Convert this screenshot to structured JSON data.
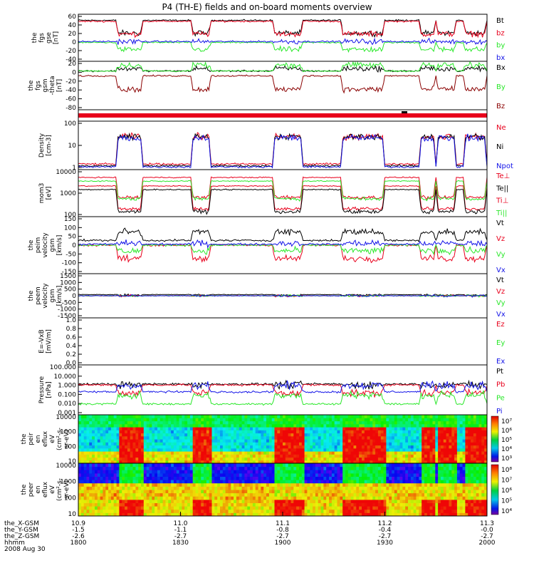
{
  "title": "P4 (TH-E) fields and on-board moments overview",
  "colors": {
    "black": "#000000",
    "red": "#e8001c",
    "green": "#2ae82a",
    "blue": "#1414e8",
    "darkred": "#8a0000"
  },
  "panels": [
    {
      "ylabel": [
        "the",
        "fgs",
        "gse",
        "[nT]"
      ],
      "ticks": [
        "60",
        "40",
        "20",
        "0",
        "-20",
        "-40"
      ],
      "legend": [
        [
          "Bt",
          "black"
        ],
        [
          "bz",
          "red"
        ],
        [
          "by",
          "green"
        ],
        [
          "bx",
          "blue"
        ]
      ]
    },
    {
      "ylabel": [
        "the",
        "fgs",
        "gsm",
        "-theta",
        "[nT]"
      ],
      "ticks": [
        "20",
        "0",
        "-20",
        "-40",
        "-60",
        "-80"
      ],
      "legend": [
        [
          "Bx",
          "black"
        ],
        [
          "By",
          "green"
        ],
        [
          "Bz",
          "darkred"
        ]
      ]
    },
    {
      "ylabel": [],
      "ticks": [],
      "legend": []
    },
    {
      "ylabel": [
        "Density",
        "[cm-3]"
      ],
      "ticks": [
        "100",
        "10",
        "1"
      ],
      "legend": [
        [
          "Ne",
          "red"
        ],
        [
          "Ni",
          "black"
        ],
        [
          "Npot",
          "blue"
        ]
      ]
    },
    {
      "ylabel": [
        "mom3",
        "[eV]"
      ],
      "ticks": [
        "10000",
        "1000",
        "100"
      ],
      "legend": [
        [
          "Te⊥",
          "red"
        ],
        [
          "Te||",
          "black"
        ],
        [
          "Ti⊥",
          "red"
        ],
        [
          "Ti||",
          "green"
        ]
      ]
    },
    {
      "ylabel": [
        "the",
        "peim",
        "velocity",
        "gsm",
        "[km/s]"
      ],
      "ticks": [
        "150",
        "100",
        "50",
        "0",
        "-50",
        "-100",
        "-150"
      ],
      "legend": [
        [
          "Vt",
          "black"
        ],
        [
          "Vz",
          "red"
        ],
        [
          "Vy",
          "green"
        ],
        [
          "Vx",
          "blue"
        ]
      ]
    },
    {
      "ylabel": [
        "the",
        "peem",
        "velocity",
        "gsm",
        "[km/s]"
      ],
      "ticks": [
        "1500",
        "1000",
        "500",
        "0",
        "-500",
        "-1000",
        "-1500"
      ],
      "legend": [
        [
          "Vt",
          "black"
        ],
        [
          "Vz",
          "red"
        ],
        [
          "Vy",
          "green"
        ],
        [
          "Vx",
          "blue"
        ]
      ]
    },
    {
      "ylabel": [
        "E=-VxB",
        "[mV/m]"
      ],
      "ticks": [
        "1.0",
        "0.8",
        "0.6",
        "0.4",
        "0.2",
        "0.0"
      ],
      "legend": [
        [
          "Ez",
          "red"
        ],
        [
          "Ey",
          "green"
        ],
        [
          "Ex",
          "blue"
        ]
      ]
    },
    {
      "ylabel": [
        "Pressure",
        "[nPa]"
      ],
      "ticks": [
        "100.000",
        "10.000",
        "1.000",
        "0.100",
        "0.010",
        "0.001"
      ],
      "legend": [
        [
          "Pt",
          "black"
        ],
        [
          "Pb",
          "red"
        ],
        [
          "Pe",
          "green"
        ],
        [
          "Pi",
          "blue"
        ]
      ]
    },
    {
      "ylabel": [
        "the",
        "peir",
        "en",
        "eflux",
        "eV",
        "(cm²-s-",
        "sr-eV)"
      ],
      "ticks": [
        "10000",
        "1000",
        "100",
        "10"
      ],
      "colorbar": [
        "10⁷",
        "10⁶",
        "10⁵",
        "10⁴",
        "10³"
      ]
    },
    {
      "ylabel": [
        "the",
        "peer",
        "en",
        "eflux",
        "eV",
        "(cm²-s-",
        "sr-eV)"
      ],
      "ticks": [
        "10000",
        "1000",
        "100",
        "10"
      ],
      "colorbar": [
        "10⁸",
        "10⁷",
        "10⁶",
        "10⁵",
        "10⁴"
      ]
    }
  ],
  "xaxis": {
    "row_labels": [
      "the_X-GSM",
      "the_Y-GSM",
      "the_Z-GSM",
      "hhmm",
      "2008 Aug 30"
    ],
    "ticks": [
      {
        "x": "10.9",
        "y": "-1.5",
        "z": "-2.6",
        "t": "1800"
      },
      {
        "x": "11.0",
        "y": "-1.1",
        "z": "-2.7",
        "t": "1830"
      },
      {
        "x": "11.1",
        "y": "-0.8",
        "z": "-2.7",
        "t": "1900"
      },
      {
        "x": "11.2",
        "y": "-0.4",
        "z": "-2.7",
        "t": "1930"
      },
      {
        "x": "11.3",
        "y": "-0.0",
        "z": "-2.7",
        "t": "2000"
      }
    ]
  },
  "chart_data": {
    "type": "line",
    "title": "P4 (TH-E) fields and on-board moments overview",
    "x_axis": {
      "label": "hhmm",
      "ticks": [
        "1800",
        "1830",
        "1900",
        "1930",
        "2000"
      ],
      "range": [
        "1800",
        "2000"
      ],
      "date": "2008 Aug 30"
    },
    "magnetosheath_intervals_hhmm": [
      [
        "1811",
        "1819"
      ],
      [
        "1833",
        "1839"
      ],
      [
        "1857",
        "1906"
      ],
      [
        "1917",
        "1930"
      ],
      [
        "1940",
        "1945"
      ],
      [
        "1945",
        "1951"
      ],
      [
        "1953",
        "2000"
      ]
    ],
    "panels": [
      {
        "ylabel": "the fgs gse [nT]",
        "ylim": [
          -40,
          60
        ],
        "series": [
          {
            "name": "Bt",
            "magnetosphere_value": 47,
            "magnetosheath_value": 20
          },
          {
            "name": "bz",
            "magnetosphere_value": 45,
            "magnetosheath_value": 18
          },
          {
            "name": "by",
            "magnetosphere_value": 0,
            "magnetosheath_value": -15
          },
          {
            "name": "bx",
            "magnetosphere_value": 2,
            "magnetosheath_value": 2
          }
        ]
      },
      {
        "ylabel": "the fgs gsm-theta [nT]",
        "ylim": [
          -80,
          20
        ],
        "series": [
          {
            "name": "Bx",
            "magnetosphere_value": 0,
            "magnetosheath_value": 5
          },
          {
            "name": "By",
            "magnetosphere_value": 0,
            "magnetosheath_value": 12
          },
          {
            "name": "Bz",
            "magnetosphere_value": -10,
            "magnetosheath_value": -38
          }
        ]
      },
      {
        "ylabel": "Density [cm-3]",
        "scale": "log",
        "ylim": [
          0.5,
          200
        ],
        "series": [
          {
            "name": "Ne",
            "magnetosphere_value": 1.0,
            "magnetosheath_value": 30
          },
          {
            "name": "Ni",
            "magnetosphere_value": 0.8,
            "magnetosheath_value": 30
          },
          {
            "name": "Npot",
            "magnetosphere_value": 0.7,
            "magnetosheath_value": 25
          }
        ]
      },
      {
        "ylabel": "mom3 [eV]",
        "scale": "log",
        "ylim": [
          20,
          15000
        ],
        "series": [
          {
            "name": "Te⊥",
            "magnetosphere_value": 1500,
            "magnetosheath_value": 60
          },
          {
            "name": "Te||",
            "magnetosphere_value": 900,
            "magnetosheath_value": 40
          },
          {
            "name": "Ti⊥",
            "magnetosphere_value": 5000,
            "magnetosheath_value": 300
          },
          {
            "name": "Ti||",
            "magnetosphere_value": 3000,
            "magnetosheath_value": 250
          }
        ]
      },
      {
        "ylabel": "the peim velocity gsm [km/s]",
        "ylim": [
          -150,
          150
        ],
        "series": [
          {
            "name": "Vt",
            "magnetosphere_value": 25,
            "magnetosheath_value": 70
          },
          {
            "name": "Vz",
            "magnetosphere_value": 0,
            "magnetosheath_value": -70
          },
          {
            "name": "Vy",
            "magnetosphere_value": 0,
            "magnetosheath_value": -30
          },
          {
            "name": "Vx",
            "magnetosphere_value": 5,
            "magnetosheath_value": 10
          }
        ]
      },
      {
        "ylabel": "the peem velocity gsm [km/s]",
        "ylim": [
          -1500,
          1500
        ],
        "series": [
          {
            "name": "Vt",
            "magnetosphere_value": 80,
            "magnetosheath_value": 50
          },
          {
            "name": "Vz",
            "magnetosphere_value": 0,
            "magnetosheath_value": 0
          },
          {
            "name": "Vy",
            "magnetosphere_value": 0,
            "magnetosheath_value": 0
          },
          {
            "name": "Vx",
            "magnetosphere_value": 0,
            "magnetosheath_value": 0
          }
        ]
      },
      {
        "ylabel": "E=-VxB [mV/m]",
        "ylim": [
          0,
          1
        ],
        "series": [
          {
            "name": "Ez"
          },
          {
            "name": "Ey"
          },
          {
            "name": "Ex"
          }
        ]
      },
      {
        "ylabel": "Pressure [nPa]",
        "scale": "log",
        "ylim": [
          0.001,
          100
        ],
        "series": [
          {
            "name": "Pt",
            "magnetosphere_value": 1.2,
            "magnetosheath_value": 1.0
          },
          {
            "name": "Pb",
            "magnetosphere_value": 1.0,
            "magnetosheath_value": 0.15
          },
          {
            "name": "Pe",
            "magnetosphere_value": 0.012,
            "magnetosheath_value": 0.1
          },
          {
            "name": "Pi",
            "magnetosphere_value": 0.2,
            "magnetosheath_value": 0.9
          }
        ]
      }
    ],
    "spectrograms": [
      {
        "ylabel": "the peir en eflux eV (cm²-s-sr-eV)",
        "type": "heatmap",
        "ylim": [
          7,
          25000
        ],
        "scale": "log",
        "colorbar_range": [
          "10³",
          "10⁷"
        ]
      },
      {
        "ylabel": "the peer en eflux eV (cm²-s-sr-eV)",
        "type": "heatmap",
        "ylim": [
          7,
          25000
        ],
        "scale": "log",
        "colorbar_range": [
          "10⁴",
          "10⁸"
        ]
      }
    ]
  }
}
